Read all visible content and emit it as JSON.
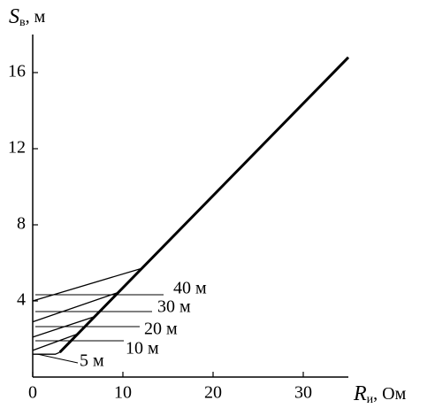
{
  "chart_data": {
    "type": "line",
    "ylabel": {
      "symbol": "S",
      "subscript": "в",
      "unit": ", м"
    },
    "xlabel": {
      "symbol": "R",
      "subscript": "и",
      "unit": ", Ом"
    },
    "xlim": [
      0,
      35
    ],
    "ylim": [
      0,
      18
    ],
    "xticks": [
      0,
      10,
      20,
      30
    ],
    "yticks": [
      4,
      8,
      12,
      16
    ],
    "series": [
      {
        "color": "#000000",
        "x": [
          3,
          35
        ],
        "values": [
          1.3,
          16.8
        ]
      },
      {
        "name": "40 м",
        "color": "#000000",
        "x": [
          0,
          12
        ],
        "values": [
          4.0,
          5.7
        ]
      },
      {
        "name": "30 м",
        "color": "#000000",
        "x": [
          0,
          9.5
        ],
        "values": [
          2.9,
          4.45
        ]
      },
      {
        "name": "20 м",
        "color": "#000000",
        "x": [
          0,
          7
        ],
        "values": [
          2.1,
          3.2
        ]
      },
      {
        "name": "10 м",
        "color": "#000000",
        "x": [
          0,
          5
        ],
        "values": [
          1.4,
          2.27
        ]
      },
      {
        "name": "5 м",
        "color": "#000000",
        "x": [
          0,
          2.5,
          3
        ],
        "values": [
          1.2,
          1.2,
          1.3
        ]
      }
    ]
  }
}
